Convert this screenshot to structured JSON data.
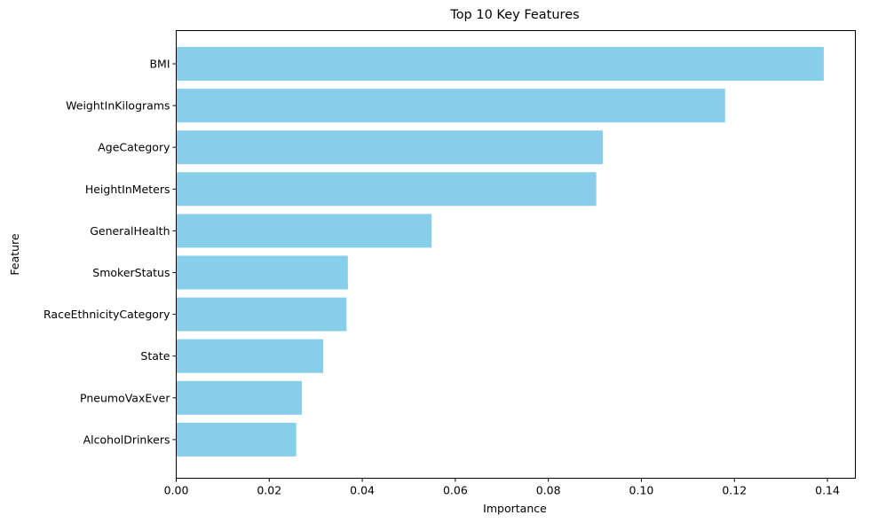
{
  "chart_data": {
    "type": "bar",
    "orientation": "horizontal",
    "title": "Top 10 Key Features",
    "xlabel": "Importance",
    "ylabel": "Feature",
    "categories": [
      "BMI",
      "WeightInKilograms",
      "AgeCategory",
      "HeightInMeters",
      "GeneralHealth",
      "SmokerStatus",
      "RaceEthnicityCategory",
      "State",
      "PneumoVaxEver",
      "AlcoholDrinkers"
    ],
    "values": [
      0.1392,
      0.118,
      0.0917,
      0.0903,
      0.0549,
      0.0369,
      0.0366,
      0.0316,
      0.027,
      0.0258
    ],
    "xlim": [
      0,
      0.146
    ],
    "xticks": [
      0.0,
      0.02,
      0.04,
      0.06,
      0.08,
      0.1,
      0.12,
      0.14
    ],
    "xtick_labels": [
      "0.00",
      "0.02",
      "0.04",
      "0.06",
      "0.08",
      "0.10",
      "0.12",
      "0.14"
    ],
    "bar_color": "#87ceeb",
    "grid": false,
    "legend": "none"
  }
}
